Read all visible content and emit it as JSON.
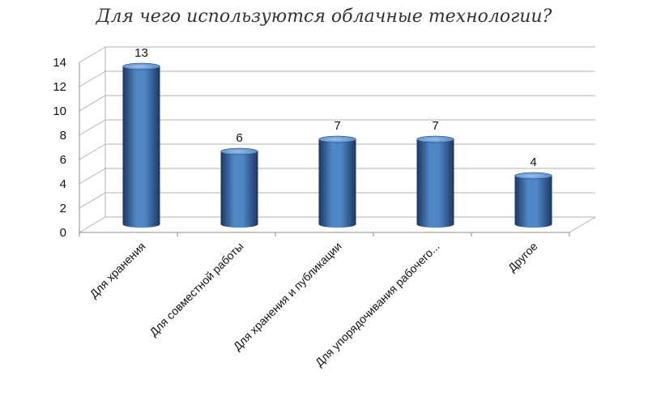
{
  "chart_data": {
    "type": "bar",
    "style": "3d-cylinder",
    "title": "Для чего используются облачные технологии?",
    "categories": [
      "Для хранения",
      "Для совместной работы",
      "Для хранения и публикации",
      "Для упорядочивания рабочего...",
      "Другое"
    ],
    "values": [
      13,
      6,
      7,
      7,
      4
    ],
    "data_labels": [
      "13",
      "6",
      "7",
      "7",
      "4"
    ],
    "yticks": [
      0,
      2,
      4,
      6,
      8,
      10,
      12,
      14
    ],
    "ytick_labels": [
      "0",
      "2",
      "4",
      "6",
      "8",
      "10",
      "12",
      "14"
    ],
    "ylim": [
      0,
      14
    ],
    "grid": true,
    "legend": "none",
    "colors": {
      "bar_dark": "#1b3760",
      "bar_mid": "#4f86c6",
      "bar_light": "#9cc2ee",
      "grid": "#b3b3b3"
    }
  }
}
